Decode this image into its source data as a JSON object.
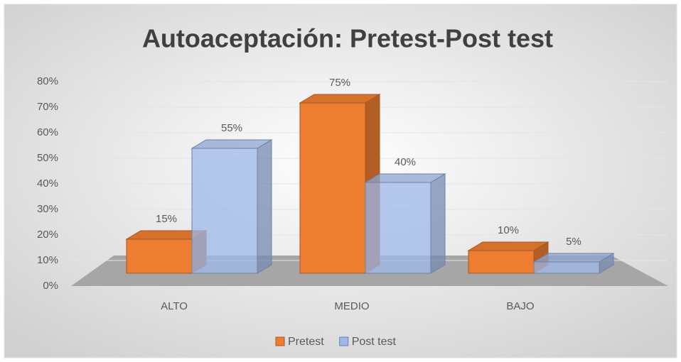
{
  "chart_data": {
    "type": "bar3d",
    "title": "Autoaceptación: Pretest-Post test",
    "categories": [
      "ALTO",
      "MEDIO",
      "BAJO"
    ],
    "series": [
      {
        "name": "Pretest",
        "color": "#ed7d31",
        "values": [
          15,
          75,
          10
        ],
        "value_labels": [
          "15%",
          "75%",
          "10%"
        ]
      },
      {
        "name": "Post test",
        "color": "#9db8ea",
        "values": [
          55,
          40,
          5
        ],
        "value_labels": [
          "55%",
          "40%",
          "5%"
        ]
      }
    ],
    "ylim": [
      0,
      80
    ],
    "yticks": [
      {
        "value": 0,
        "label": "0%"
      },
      {
        "value": 10,
        "label": "10%"
      },
      {
        "value": 20,
        "label": "20%"
      },
      {
        "value": 30,
        "label": "30%"
      },
      {
        "value": 40,
        "label": "40%"
      },
      {
        "value": 50,
        "label": "50%"
      },
      {
        "value": 60,
        "label": "60%"
      },
      {
        "value": 70,
        "label": "70%"
      },
      {
        "value": 80,
        "label": "80%"
      }
    ],
    "grid": true,
    "legend": "bottom"
  }
}
